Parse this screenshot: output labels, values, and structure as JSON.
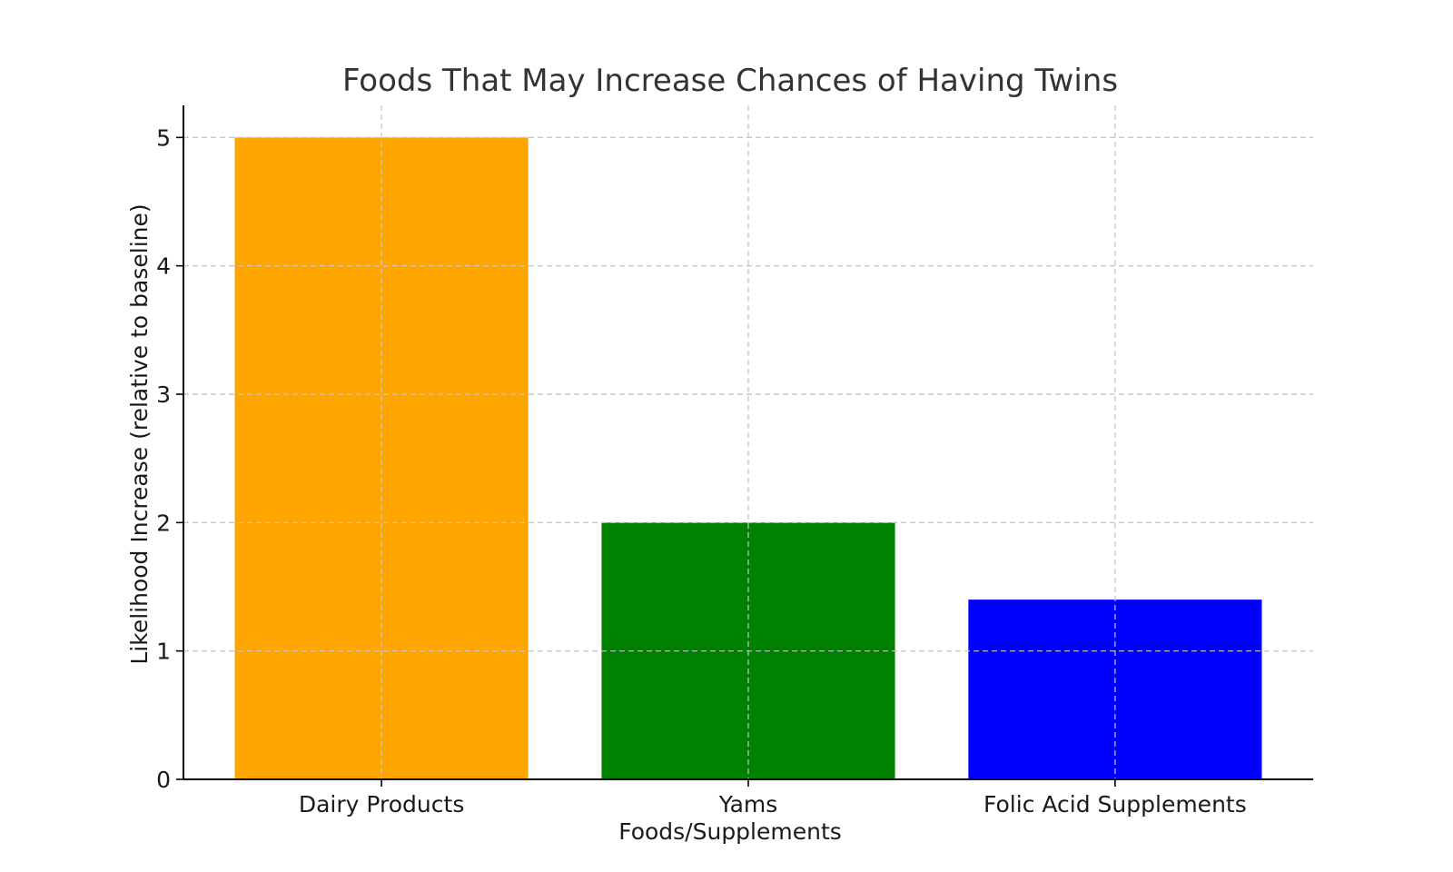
{
  "chart_data": {
    "type": "bar",
    "title": "Foods That May Increase Chances of Having Twins",
    "xlabel": "Foods/Supplements",
    "ylabel": "Likelihood Increase (relative to baseline)",
    "categories": [
      "Dairy Products",
      "Yams",
      "Folic Acid Supplements"
    ],
    "values": [
      5,
      2,
      1.4
    ],
    "colors": [
      "#ffa500",
      "#008000",
      "#0000ff"
    ],
    "ylim": [
      0,
      5.25
    ],
    "yticks": [
      0,
      1,
      2,
      3,
      4,
      5
    ],
    "grid": true
  }
}
